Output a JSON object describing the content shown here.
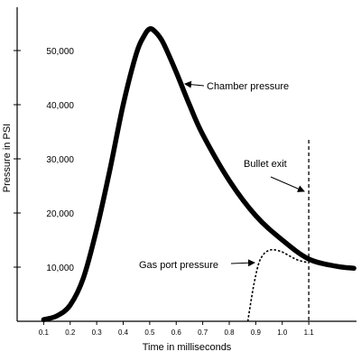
{
  "chart_data": {
    "type": "line",
    "xlabel": "Time in milliseconds",
    "ylabel": "Pressure in PSI",
    "xlim": [
      0,
      1.28
    ],
    "ylim": [
      0,
      58000
    ],
    "grid": false,
    "x_ticks": [
      0.1,
      0.2,
      0.3,
      0.4,
      0.5,
      0.6,
      0.7,
      0.8,
      0.9,
      1.0,
      1.1
    ],
    "x_tick_labels": [
      "0.1",
      "0.2",
      "0.3",
      "0.4",
      "0.5",
      "0.6",
      "0.7",
      "0.8",
      "0.9",
      "1.0",
      "1.1"
    ],
    "y_ticks": [
      10000,
      20000,
      30000,
      40000,
      50000
    ],
    "y_tick_labels": [
      "10,000",
      "20,000",
      "30,000",
      "40,000",
      "50,000"
    ],
    "series": [
      {
        "name": "Chamber pressure",
        "style": "solid-thick",
        "x": [
          0.1,
          0.15,
          0.2,
          0.25,
          0.3,
          0.35,
          0.4,
          0.45,
          0.48,
          0.5,
          0.52,
          0.55,
          0.6,
          0.65,
          0.7,
          0.8,
          0.9,
          1.0,
          1.1,
          1.2,
          1.27
        ],
        "y": [
          300,
          1000,
          3000,
          8000,
          17000,
          28000,
          40000,
          49500,
          52800,
          54000,
          53500,
          51500,
          46000,
          40000,
          34500,
          26000,
          19500,
          15000,
          11500,
          10200,
          9800
        ]
      },
      {
        "name": "Gas port pressure",
        "style": "dotted",
        "x": [
          0.87,
          0.89,
          0.91,
          0.93,
          0.95,
          0.97,
          1.0,
          1.03,
          1.06,
          1.1
        ],
        "y": [
          0,
          6000,
          10500,
          12400,
          13100,
          13200,
          12800,
          12000,
          11300,
          10800
        ]
      }
    ],
    "annotations": [
      {
        "text": "Chamber pressure",
        "x": 0.65,
        "y": 45000,
        "arrow": true
      },
      {
        "text": "Gas port pressure",
        "x": 0.92,
        "y": 11000,
        "arrow": true
      },
      {
        "text": "Bullet exit",
        "x": 1.1,
        "y": 28000,
        "arrow": true
      }
    ],
    "vlines": [
      {
        "x": 1.1,
        "style": "dashed",
        "label": "Bullet exit"
      }
    ]
  }
}
